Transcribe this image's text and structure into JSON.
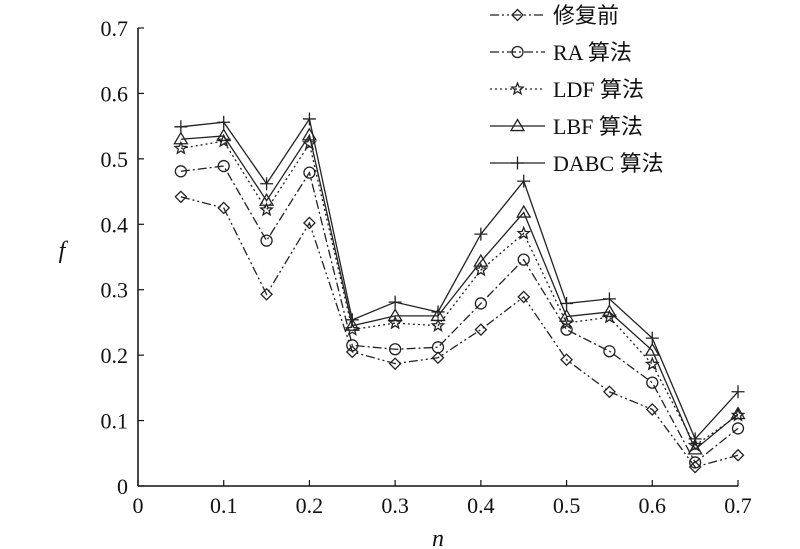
{
  "chart_data": {
    "type": "line",
    "xlabel": "n",
    "ylabel": "f",
    "xlim": [
      0,
      0.7
    ],
    "ylim": [
      0,
      0.7
    ],
    "xticks": [
      "0",
      "0.1",
      "0.2",
      "0.3",
      "0.4",
      "0.5",
      "0.6",
      "0.7"
    ],
    "yticks": [
      "0",
      "0.1",
      "0.2",
      "0.3",
      "0.4",
      "0.5",
      "0.6",
      "0.7"
    ],
    "grid": false,
    "legend_position": "top-right",
    "x": [
      0.05,
      0.1,
      0.15,
      0.2,
      0.25,
      0.3,
      0.35,
      0.4,
      0.45,
      0.5,
      0.55,
      0.6,
      0.65,
      0.7
    ],
    "series": [
      {
        "name": "修复前",
        "marker": "diamond",
        "line_style": "dash-dot-dot",
        "values": [
          0.442,
          0.425,
          0.293,
          0.402,
          0.205,
          0.187,
          0.196,
          0.239,
          0.289,
          0.193,
          0.144,
          0.117,
          0.029,
          0.047
        ]
      },
      {
        "name": "RA 算法",
        "marker": "circle",
        "line_style": "dash-dot",
        "values": [
          0.481,
          0.489,
          0.375,
          0.479,
          0.215,
          0.209,
          0.212,
          0.279,
          0.346,
          0.239,
          0.206,
          0.158,
          0.036,
          0.088
        ]
      },
      {
        "name": "LDF 算法",
        "marker": "star",
        "line_style": "dotted",
        "values": [
          0.516,
          0.527,
          0.422,
          0.523,
          0.239,
          0.249,
          0.245,
          0.33,
          0.386,
          0.249,
          0.258,
          0.186,
          0.062,
          0.108
        ]
      },
      {
        "name": "LBF 算法",
        "marker": "triangle",
        "line_style": "solid",
        "values": [
          0.53,
          0.535,
          0.436,
          0.536,
          0.245,
          0.26,
          0.26,
          0.343,
          0.418,
          0.259,
          0.266,
          0.207,
          0.056,
          0.11
        ]
      },
      {
        "name": "DABC 算法",
        "marker": "plus",
        "line_style": "solid",
        "values": [
          0.549,
          0.556,
          0.462,
          0.561,
          0.254,
          0.281,
          0.266,
          0.385,
          0.466,
          0.279,
          0.286,
          0.226,
          0.072,
          0.144
        ]
      }
    ]
  }
}
